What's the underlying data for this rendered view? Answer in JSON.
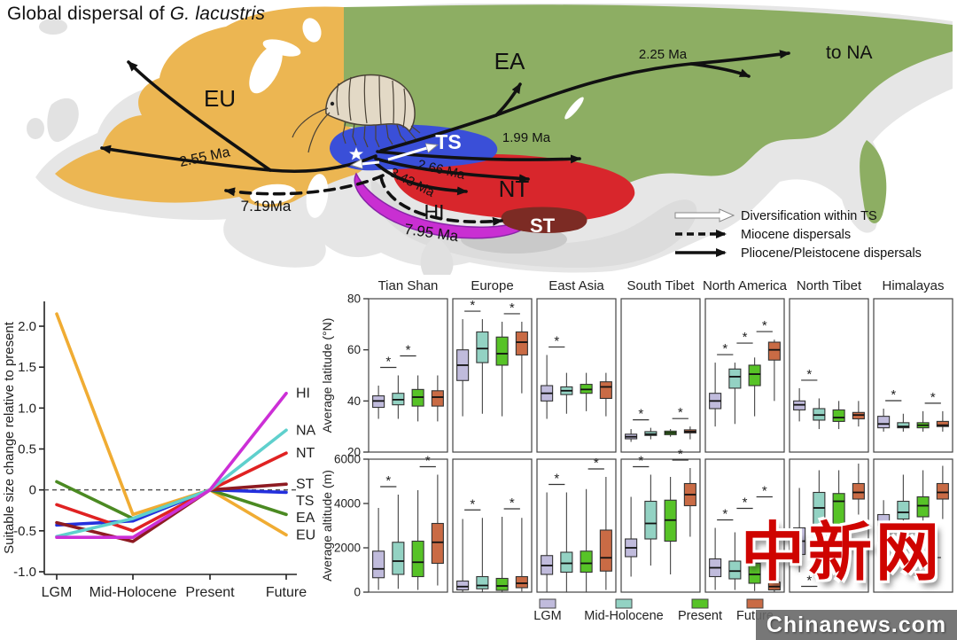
{
  "figure": {
    "title_prefix": "Global dispersal of ",
    "title_species": "G. lacustris"
  },
  "map": {
    "labels": {
      "eu": "EU",
      "ea": "EA",
      "ts": "TS",
      "nt": "NT",
      "hi": "HI",
      "st": "ST",
      "to_na": "to NA"
    },
    "arrow_labels": {
      "a255": "2.55 Ma",
      "a719": "7.19Ma",
      "a795": "7.95 Ma",
      "a343": "3.43 Ma",
      "a266": "2.66 Ma",
      "a199": "1.99 Ma",
      "a225": "2.25 Ma"
    },
    "legend": [
      {
        "style": "open",
        "label": "Diversification within TS"
      },
      {
        "style": "dashed",
        "label": "Miocene dispersals"
      },
      {
        "style": "solid",
        "label": "Pliocene/Pleistocene dispersals"
      }
    ],
    "region_colors": {
      "eu": "#ecb652",
      "ea": "#8dae63",
      "ts": "#3a4fd8",
      "nt": "#d8262c",
      "hi": "#c92fd2",
      "st": "#7c2b24"
    }
  },
  "chart_data": [
    {
      "id": "suitable-size-change",
      "type": "line",
      "ylabel": "Suitable size change relative to present",
      "x_categories": [
        "LGM",
        "Mid-Holocene",
        "Present",
        "Future"
      ],
      "ylim": [
        -1.05,
        2.3
      ],
      "yticks": [
        -1.0,
        -0.5,
        0,
        0.5,
        1.0,
        1.5,
        2.0
      ],
      "ytick_labels": [
        "-1.0",
        "-0.5",
        "0",
        "0.5",
        "1.0",
        "1.5",
        "2.0"
      ],
      "zero_line": "dashed",
      "series": [
        {
          "name": "HI",
          "color": "#cc2fd6",
          "values": [
            -0.58,
            -0.58,
            0,
            1.18
          ]
        },
        {
          "name": "NA",
          "color": "#5fd0cd",
          "values": [
            -0.57,
            -0.35,
            0,
            0.73
          ]
        },
        {
          "name": "NT",
          "color": "#e02222",
          "values": [
            -0.18,
            -0.5,
            0,
            0.45
          ]
        },
        {
          "name": "ST",
          "color": "#8e1b22",
          "values": [
            -0.4,
            -0.63,
            0,
            0.07
          ]
        },
        {
          "name": "TS",
          "color": "#2430dd",
          "values": [
            -0.43,
            -0.38,
            0,
            -0.03
          ]
        },
        {
          "name": "EA",
          "color": "#4b8a22",
          "values": [
            0.1,
            -0.35,
            0,
            -0.3
          ]
        },
        {
          "name": "EU",
          "color": "#f0ac33",
          "values": [
            2.15,
            -0.3,
            0,
            -0.55
          ]
        }
      ]
    },
    {
      "id": "average-latitude",
      "type": "boxplot-grid",
      "ylabel": "Average latitude (°N)",
      "ylim": [
        20,
        80
      ],
      "yticks": [
        20,
        40,
        60,
        80
      ],
      "ytick_labels": [
        "20",
        "40",
        "60",
        "80"
      ],
      "groups": [
        "LGM",
        "Mid-Holocene",
        "Present",
        "Future"
      ],
      "group_colors": [
        "#c0bbdc",
        "#93d2c3",
        "#57c327",
        "#c96b45"
      ],
      "panels": [
        {
          "title": "Tian Shan",
          "boxes": [
            [
              33,
              37.5,
              40,
              42,
              46
            ],
            [
              33,
              38.5,
              40.5,
              43,
              50
            ],
            [
              32,
              38,
              41.5,
              44.5,
              50
            ],
            [
              32,
              38,
              41.5,
              44,
              50
            ]
          ],
          "sig": [
            [
              0,
              1
            ],
            [
              1,
              2
            ]
          ]
        },
        {
          "title": "Europe",
          "boxes": [
            [
              34,
              48,
              54,
              60,
              72
            ],
            [
              35,
              55,
              60.5,
              67,
              72
            ],
            [
              34,
              54,
              58.5,
              65,
              71
            ],
            [
              43,
              58,
              63,
              67,
              71
            ]
          ],
          "sig": [
            [
              0,
              1
            ],
            [
              2,
              3
            ]
          ]
        },
        {
          "title": "East Asia",
          "boxes": [
            [
              33,
              40,
              43,
              46,
              58
            ],
            [
              35,
              42.5,
              44,
              45.5,
              51
            ],
            [
              36,
              43,
              44.5,
              46.5,
              51
            ],
            [
              34,
              41,
              45.5,
              47.5,
              51
            ]
          ],
          "sig": [
            [
              0,
              1
            ]
          ]
        },
        {
          "title": "South Tibet",
          "boxes": [
            [
              24,
              25.2,
              26,
              27,
              29
            ],
            [
              25,
              26.5,
              27,
              28,
              29.5
            ],
            [
              26,
              26.8,
              27.5,
              28.2,
              29
            ],
            [
              25,
              27.5,
              28,
              28.7,
              30
            ]
          ],
          "sig": [
            [
              0,
              1
            ],
            [
              2,
              3
            ]
          ]
        },
        {
          "title": "North America",
          "boxes": [
            [
              30,
              37,
              40,
              43,
              55
            ],
            [
              31,
              45,
              49.5,
              52.5,
              55
            ],
            [
              34,
              46,
              50.5,
              54,
              57
            ],
            [
              40,
              56,
              60,
              63,
              64
            ]
          ],
          "sig": [
            [
              0,
              1
            ],
            [
              1,
              2
            ],
            [
              2,
              3
            ]
          ]
        },
        {
          "title": "North Tibet",
          "boxes": [
            [
              32,
              36.5,
              38.5,
              40,
              45
            ],
            [
              29,
              32.5,
              34.5,
              37,
              41
            ],
            [
              29,
              32,
              33.5,
              36.5,
              40
            ],
            [
              30,
              33,
              34.5,
              35.5,
              40
            ]
          ],
          "sig": [
            [
              0,
              1
            ]
          ]
        },
        {
          "title": "Himalayas",
          "boxes": [
            [
              28,
              29.5,
              31,
              34,
              37
            ],
            [
              28,
              29.5,
              30,
              31.5,
              35
            ],
            [
              28,
              29.5,
              30.5,
              31.5,
              36
            ],
            [
              28,
              30,
              30.5,
              32,
              36
            ]
          ],
          "sig": [
            [
              0,
              1
            ],
            [
              2,
              3
            ]
          ]
        }
      ]
    },
    {
      "id": "average-altitude",
      "type": "boxplot-grid",
      "ylabel": "Average altitude (m)",
      "ylim": [
        0,
        6000
      ],
      "yticks": [
        0,
        2000,
        4000,
        6000
      ],
      "ytick_labels": [
        "0",
        "2000",
        "4000",
        "6000"
      ],
      "groups": [
        "LGM",
        "Mid-Holocene",
        "Present",
        "Future"
      ],
      "group_colors": [
        "#c0bbdc",
        "#93d2c3",
        "#57c327",
        "#c96b45"
      ],
      "panels": [
        {
          "title": "Tian Shan",
          "boxes": [
            [
              100,
              650,
              1050,
              1850,
              3800
            ],
            [
              150,
              800,
              1400,
              2250,
              4400
            ],
            [
              100,
              700,
              1350,
              2300,
              4600
            ],
            [
              300,
              1300,
              2250,
              3100,
              5300
            ]
          ],
          "sig": [
            [
              0,
              1
            ],
            [
              2,
              3
            ]
          ]
        },
        {
          "title": "Europe",
          "boxes": [
            [
              0,
              100,
              250,
              500,
              3300
            ],
            [
              0,
              150,
              300,
              700,
              3350
            ],
            [
              0,
              80,
              280,
              620,
              3400
            ],
            [
              30,
              200,
              400,
              700,
              3350
            ]
          ],
          "sig": [
            [
              0,
              1
            ],
            [
              2,
              3
            ]
          ]
        },
        {
          "title": "East Asia",
          "boxes": [
            [
              0,
              800,
              1200,
              1650,
              4500
            ],
            [
              0,
              900,
              1300,
              1800,
              4500
            ],
            [
              0,
              900,
              1300,
              1850,
              4650
            ],
            [
              100,
              950,
              1550,
              2800,
              5200
            ]
          ],
          "sig": [
            [
              0,
              1
            ],
            [
              2,
              3
            ]
          ]
        },
        {
          "title": "South Tibet",
          "boxes": [
            [
              700,
              1600,
              2000,
              2400,
              4300
            ],
            [
              1200,
              2400,
              3100,
              4100,
              5300
            ],
            [
              800,
              2300,
              3250,
              4150,
              5200
            ],
            [
              2500,
              3900,
              4400,
              4900,
              5600
            ]
          ],
          "sig": [
            [
              0,
              1
            ],
            [
              2,
              3
            ]
          ]
        },
        {
          "title": "North America",
          "boxes": [
            [
              100,
              700,
              1100,
              1500,
              2900
            ],
            [
              100,
              600,
              950,
              1400,
              2700
            ],
            [
              50,
              400,
              800,
              1300,
              2500
            ],
            [
              0,
              100,
              250,
              450,
              1500
            ]
          ],
          "sig": [
            [
              0,
              1
            ],
            [
              1,
              2
            ],
            [
              2,
              3
            ]
          ]
        },
        {
          "title": "North Tibet",
          "boxes": [
            [
              900,
              1700,
              2300,
              2900,
              4700
            ],
            [
              1500,
              2800,
              3800,
              4500,
              5500
            ],
            [
              2000,
              3000,
              4100,
              4450,
              5500
            ],
            [
              3500,
              4200,
              4500,
              4900,
              5800
            ]
          ],
          "sig": [
            [
              0,
              1,
              "below"
            ]
          ]
        },
        {
          "title": "Himalayas",
          "boxes": [
            [
              1500,
              2300,
              2900,
              3500,
              4150
            ],
            [
              2000,
              3300,
              3600,
              4100,
              5300
            ],
            [
              2200,
              3400,
              3900,
              4300,
              5500
            ],
            [
              3300,
              4200,
              4500,
              4900,
              5700
            ]
          ],
          "sig": [
            [
              2,
              3,
              "below"
            ]
          ]
        }
      ]
    }
  ],
  "watermark": {
    "cn": "中新网",
    "en": "Chinanews.com"
  }
}
